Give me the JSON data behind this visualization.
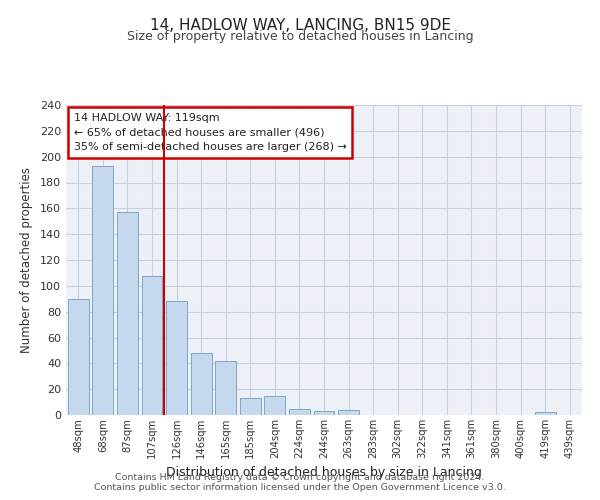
{
  "title": "14, HADLOW WAY, LANCING, BN15 9DE",
  "subtitle": "Size of property relative to detached houses in Lancing",
  "xlabel": "Distribution of detached houses by size in Lancing",
  "ylabel": "Number of detached properties",
  "bar_labels": [
    "48sqm",
    "68sqm",
    "87sqm",
    "107sqm",
    "126sqm",
    "146sqm",
    "165sqm",
    "185sqm",
    "204sqm",
    "224sqm",
    "244sqm",
    "263sqm",
    "283sqm",
    "302sqm",
    "322sqm",
    "341sqm",
    "361sqm",
    "380sqm",
    "400sqm",
    "419sqm",
    "439sqm"
  ],
  "bar_values": [
    90,
    193,
    157,
    108,
    88,
    48,
    42,
    13,
    15,
    5,
    3,
    4,
    0,
    0,
    0,
    0,
    0,
    0,
    0,
    2,
    0
  ],
  "bar_color": "#c5d8ed",
  "bar_edge_color": "#7aaac8",
  "vline_x_index": 3.5,
  "vline_color": "#cc0000",
  "annotation_box_text": "14 HADLOW WAY: 119sqm\n← 65% of detached houses are smaller (496)\n35% of semi-detached houses are larger (268) →",
  "box_edge_color": "#cc0000",
  "ylim": [
    0,
    240
  ],
  "yticks": [
    0,
    20,
    40,
    60,
    80,
    100,
    120,
    140,
    160,
    180,
    200,
    220,
    240
  ],
  "footer_line1": "Contains HM Land Registry data © Crown copyright and database right 2024.",
  "footer_line2": "Contains public sector information licensed under the Open Government Licence v3.0.",
  "bg_color": "#edf1f7",
  "grid_color": "#c8d0de"
}
